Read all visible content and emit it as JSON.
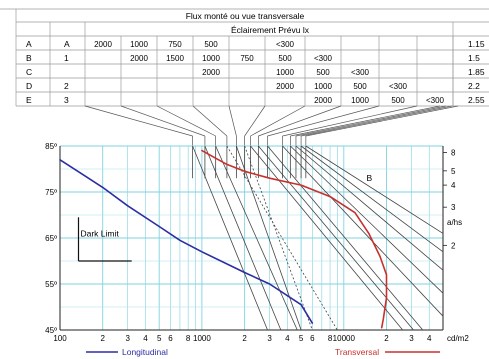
{
  "table": {
    "title": "Flux monté ou vue transversale",
    "subheader": "Éclairement Prévu lx",
    "rows": [
      {
        "id": "A",
        "group": "A",
        "cells": [
          "2000",
          "1000",
          "750",
          "500",
          "",
          "<300",
          "",
          "",
          "",
          "",
          ""
        ],
        "ratio": "1.15"
      },
      {
        "id": "B",
        "group": "1",
        "cells": [
          "",
          "2000",
          "1500",
          "1000",
          "750",
          "500",
          "<300",
          "",
          "",
          "",
          ""
        ],
        "ratio": "1.5"
      },
      {
        "id": "C",
        "group": "",
        "cells": [
          "",
          "",
          "",
          "2000",
          "",
          "1000",
          "500",
          "<300",
          "",
          "",
          ""
        ],
        "ratio": "1.85"
      },
      {
        "id": "D",
        "group": "2",
        "cells": [
          "",
          "",
          "",
          "",
          "",
          "2000",
          "1000",
          "500",
          "<300",
          "",
          ""
        ],
        "ratio": "2.2"
      },
      {
        "id": "E",
        "group": "3",
        "cells": [
          "",
          "",
          "",
          "",
          "",
          "",
          "2000",
          "1000",
          "500",
          "<300",
          ""
        ],
        "ratio": "2.55"
      }
    ]
  },
  "chart_data": {
    "type": "line",
    "title": "",
    "xlabel": "",
    "ylabel": "",
    "x_scale": "log",
    "xlim": [
      100,
      50000
    ],
    "ylim": [
      45,
      85
    ],
    "x_unit": "cd/m2",
    "x_tick_labels": [
      {
        "v": 100,
        "t": "100"
      },
      {
        "v": 200,
        "t": "2"
      },
      {
        "v": 300,
        "t": "3"
      },
      {
        "v": 400,
        "t": "4"
      },
      {
        "v": 500,
        "t": "5"
      },
      {
        "v": 600,
        "t": "6"
      },
      {
        "v": 800,
        "t": "8"
      },
      {
        "v": 1000,
        "t": "1000"
      },
      {
        "v": 2000,
        "t": "2"
      },
      {
        "v": 3000,
        "t": "3"
      },
      {
        "v": 4000,
        "t": "4"
      },
      {
        "v": 5000,
        "t": "5"
      },
      {
        "v": 6000,
        "t": "6"
      },
      {
        "v": 8000,
        "t": "8"
      },
      {
        "v": 10000,
        "t": "10000"
      },
      {
        "v": 20000,
        "t": "2"
      },
      {
        "v": 30000,
        "t": "3"
      },
      {
        "v": 40000,
        "t": "4"
      }
    ],
    "y_ticks": [
      85,
      75,
      65,
      55,
      45
    ],
    "y_tick_labels": [
      "85º",
      "75º",
      "65º",
      "55º",
      "45º"
    ],
    "right_axis": {
      "label": "a/hs",
      "ticks": [
        {
          "angle": 83.6,
          "label": "8"
        },
        {
          "angle": 79.6,
          "label": "5"
        },
        {
          "angle": 76.5,
          "label": "4"
        },
        {
          "angle": 71.7,
          "label": "3"
        },
        {
          "angle": 63.4,
          "label": "2"
        }
      ]
    },
    "grid": true,
    "annotations": [
      {
        "text": "B",
        "x": 14000,
        "y": 78
      },
      {
        "text": "Dark Limit",
        "x": 135,
        "y": 66
      }
    ],
    "dark_limit": {
      "x": 135,
      "y_top": 69.5,
      "y_bottom": 60,
      "x_end": 320
    },
    "series": [
      {
        "name": "Longitudinal",
        "color": "#2b2ea3",
        "points": [
          [
            100,
            82
          ],
          [
            150,
            78.5
          ],
          [
            200,
            76
          ],
          [
            300,
            72
          ],
          [
            500,
            67.5
          ],
          [
            700,
            64.5
          ],
          [
            1000,
            62
          ],
          [
            2000,
            57.5
          ],
          [
            3000,
            55
          ],
          [
            5000,
            50.5
          ],
          [
            6000,
            46.5
          ]
        ]
      },
      {
        "name": "Transversal",
        "color": "#c8302c",
        "points": [
          [
            1000,
            84
          ],
          [
            1500,
            81
          ],
          [
            2000,
            79.5
          ],
          [
            3000,
            78
          ],
          [
            5000,
            76.5
          ],
          [
            8000,
            74
          ],
          [
            12000,
            70.5
          ],
          [
            15000,
            66
          ],
          [
            18000,
            61
          ],
          [
            20000,
            57
          ],
          [
            20000,
            52
          ],
          [
            19000,
            47.5
          ],
          [
            18500,
            45.5
          ]
        ]
      }
    ],
    "limit_lines": [
      {
        "top_x": 860,
        "bottom_x": 2900
      },
      {
        "top_x": 1050,
        "bottom_x": 3600
      },
      {
        "top_x": 1250,
        "bottom_x": 4700
      },
      {
        "top_x": 1500,
        "bottom_x": 9000,
        "dashed": true
      },
      {
        "top_x": 1750,
        "bottom_x": 5000
      },
      {
        "top_x": 2000,
        "bottom_x": 6000,
        "dashed": true
      },
      {
        "top_x": 2200,
        "bottom_x": 26000
      },
      {
        "top_x": 2500,
        "bottom_x": 31000
      },
      {
        "top_x": 2900,
        "bottom_x": 36000
      },
      {
        "top_x": 3700,
        "right_y": 48
      },
      {
        "top_x": 4200,
        "right_y": 53
      },
      {
        "top_x": 4600,
        "right_y": 58
      },
      {
        "top_x": 5000,
        "right_y": 62
      },
      {
        "top_x": 5400,
        "right_y": 66
      }
    ],
    "legend": [
      "Longitudinal",
      "Transversal"
    ],
    "legend_position": "bottom"
  }
}
